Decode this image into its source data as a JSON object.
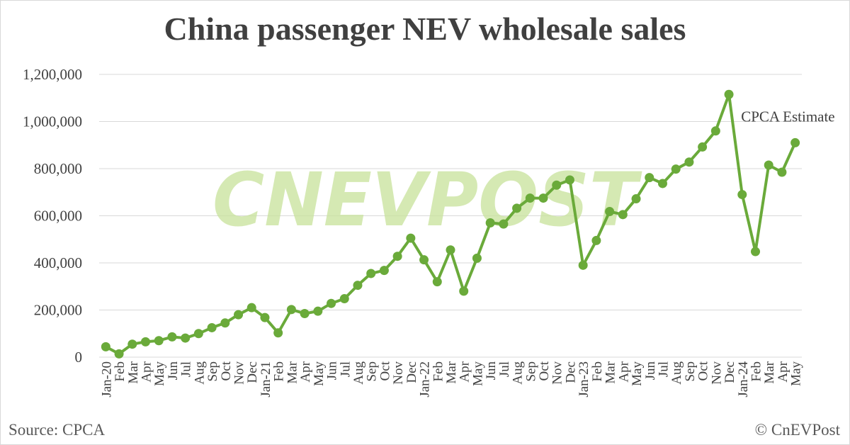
{
  "page": {
    "title": "China passenger NEV wholesale sales",
    "source": "Source: CPCA",
    "copyright": "© CnEVPost",
    "watermark": "CNEVPOST"
  },
  "colors": {
    "series": "#6aaa3a",
    "grid": "#d9d9d9",
    "watermark": "#c7e29a",
    "text": "#404040"
  },
  "chart_data": {
    "type": "line",
    "title": "China passenger NEV wholesale sales",
    "xlabel": "",
    "ylabel": "",
    "ylim": [
      0,
      1200000
    ],
    "yticks": [
      0,
      200000,
      400000,
      600000,
      800000,
      1000000,
      1200000
    ],
    "ytick_labels": [
      "0",
      "200,000",
      "400,000",
      "600,000",
      "800,000",
      "1,000,000",
      "1,200,000"
    ],
    "grid": true,
    "categories": [
      "Jan-20",
      "Feb",
      "Mar",
      "Apr",
      "May",
      "Jun",
      "Jul",
      "Aug",
      "Sep",
      "Oct",
      "Nov",
      "Dec",
      "Jan-21",
      "Feb",
      "Mar",
      "Apr",
      "May",
      "Jun",
      "Jul",
      "Aug",
      "Sep",
      "Oct",
      "Nov",
      "Dec",
      "Jan-22",
      "Feb",
      "Mar",
      "Apr",
      "May",
      "Jun",
      "Jul",
      "Aug",
      "Sep",
      "Oct",
      "Nov",
      "Dec",
      "Jan-23",
      "Feb",
      "Mar",
      "Apr",
      "May",
      "Jun",
      "Jul",
      "Aug",
      "Sep",
      "Oct",
      "Nov",
      "Dec",
      "Jan-24",
      "Feb",
      "Mar",
      "Apr",
      "May"
    ],
    "series": [
      {
        "values": [
          44000,
          14000,
          55000,
          65000,
          70000,
          86000,
          81000,
          100000,
          125000,
          145000,
          180000,
          210000,
          168000,
          103000,
          202000,
          185000,
          195000,
          228000,
          248000,
          305000,
          355000,
          368000,
          428000,
          505000,
          413000,
          320000,
          455000,
          280000,
          420000,
          570000,
          565000,
          632000,
          675000,
          675000,
          730000,
          752000,
          390000,
          495000,
          618000,
          605000,
          672000,
          762000,
          737000,
          798000,
          828000,
          892000,
          960000,
          1115000,
          690000,
          448000,
          815000,
          785000,
          910000
        ]
      }
    ],
    "annotations": [
      {
        "text": "CPCA Estimate",
        "category_index": 52
      }
    ]
  }
}
